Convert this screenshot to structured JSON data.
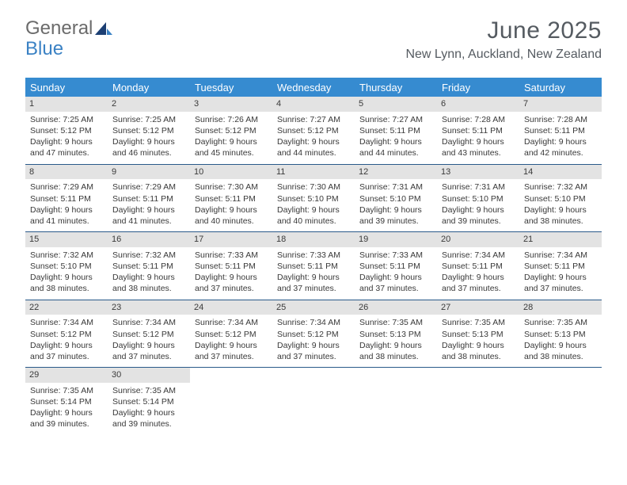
{
  "logo": {
    "word1": "General",
    "word2": "Blue"
  },
  "title": "June 2025",
  "subtitle": "New Lynn, Auckland, New Zealand",
  "colors": {
    "header_bg": "#368bd0",
    "header_text": "#ffffff",
    "daynum_bg": "#e3e3e3",
    "week_divider": "#2a5a8a",
    "logo_gray": "#6b6b6b",
    "logo_blue": "#3b82c4",
    "title_color": "#555b61",
    "body_text": "#393939"
  },
  "typography": {
    "title_fontsize": 30,
    "subtitle_fontsize": 16,
    "dow_fontsize": 13,
    "cell_fontsize": 10.5,
    "logo_fontsize": 24
  },
  "dow": [
    "Sunday",
    "Monday",
    "Tuesday",
    "Wednesday",
    "Thursday",
    "Friday",
    "Saturday"
  ],
  "days": [
    {
      "n": 1,
      "sr": "7:25 AM",
      "ss": "5:12 PM",
      "dl": "9 hours and 47 minutes."
    },
    {
      "n": 2,
      "sr": "7:25 AM",
      "ss": "5:12 PM",
      "dl": "9 hours and 46 minutes."
    },
    {
      "n": 3,
      "sr": "7:26 AM",
      "ss": "5:12 PM",
      "dl": "9 hours and 45 minutes."
    },
    {
      "n": 4,
      "sr": "7:27 AM",
      "ss": "5:12 PM",
      "dl": "9 hours and 44 minutes."
    },
    {
      "n": 5,
      "sr": "7:27 AM",
      "ss": "5:11 PM",
      "dl": "9 hours and 44 minutes."
    },
    {
      "n": 6,
      "sr": "7:28 AM",
      "ss": "5:11 PM",
      "dl": "9 hours and 43 minutes."
    },
    {
      "n": 7,
      "sr": "7:28 AM",
      "ss": "5:11 PM",
      "dl": "9 hours and 42 minutes."
    },
    {
      "n": 8,
      "sr": "7:29 AM",
      "ss": "5:11 PM",
      "dl": "9 hours and 41 minutes."
    },
    {
      "n": 9,
      "sr": "7:29 AM",
      "ss": "5:11 PM",
      "dl": "9 hours and 41 minutes."
    },
    {
      "n": 10,
      "sr": "7:30 AM",
      "ss": "5:11 PM",
      "dl": "9 hours and 40 minutes."
    },
    {
      "n": 11,
      "sr": "7:30 AM",
      "ss": "5:10 PM",
      "dl": "9 hours and 40 minutes."
    },
    {
      "n": 12,
      "sr": "7:31 AM",
      "ss": "5:10 PM",
      "dl": "9 hours and 39 minutes."
    },
    {
      "n": 13,
      "sr": "7:31 AM",
      "ss": "5:10 PM",
      "dl": "9 hours and 39 minutes."
    },
    {
      "n": 14,
      "sr": "7:32 AM",
      "ss": "5:10 PM",
      "dl": "9 hours and 38 minutes."
    },
    {
      "n": 15,
      "sr": "7:32 AM",
      "ss": "5:10 PM",
      "dl": "9 hours and 38 minutes."
    },
    {
      "n": 16,
      "sr": "7:32 AM",
      "ss": "5:11 PM",
      "dl": "9 hours and 38 minutes."
    },
    {
      "n": 17,
      "sr": "7:33 AM",
      "ss": "5:11 PM",
      "dl": "9 hours and 37 minutes."
    },
    {
      "n": 18,
      "sr": "7:33 AM",
      "ss": "5:11 PM",
      "dl": "9 hours and 37 minutes."
    },
    {
      "n": 19,
      "sr": "7:33 AM",
      "ss": "5:11 PM",
      "dl": "9 hours and 37 minutes."
    },
    {
      "n": 20,
      "sr": "7:34 AM",
      "ss": "5:11 PM",
      "dl": "9 hours and 37 minutes."
    },
    {
      "n": 21,
      "sr": "7:34 AM",
      "ss": "5:11 PM",
      "dl": "9 hours and 37 minutes."
    },
    {
      "n": 22,
      "sr": "7:34 AM",
      "ss": "5:12 PM",
      "dl": "9 hours and 37 minutes."
    },
    {
      "n": 23,
      "sr": "7:34 AM",
      "ss": "5:12 PM",
      "dl": "9 hours and 37 minutes."
    },
    {
      "n": 24,
      "sr": "7:34 AM",
      "ss": "5:12 PM",
      "dl": "9 hours and 37 minutes."
    },
    {
      "n": 25,
      "sr": "7:34 AM",
      "ss": "5:12 PM",
      "dl": "9 hours and 37 minutes."
    },
    {
      "n": 26,
      "sr": "7:35 AM",
      "ss": "5:13 PM",
      "dl": "9 hours and 38 minutes."
    },
    {
      "n": 27,
      "sr": "7:35 AM",
      "ss": "5:13 PM",
      "dl": "9 hours and 38 minutes."
    },
    {
      "n": 28,
      "sr": "7:35 AM",
      "ss": "5:13 PM",
      "dl": "9 hours and 38 minutes."
    },
    {
      "n": 29,
      "sr": "7:35 AM",
      "ss": "5:14 PM",
      "dl": "9 hours and 39 minutes."
    },
    {
      "n": 30,
      "sr": "7:35 AM",
      "ss": "5:14 PM",
      "dl": "9 hours and 39 minutes."
    }
  ],
  "labels": {
    "sunrise": "Sunrise:",
    "sunset": "Sunset:",
    "daylight": "Daylight:"
  },
  "layout": {
    "first_weekday_index": 0,
    "weeks": 5,
    "cols": 7
  }
}
